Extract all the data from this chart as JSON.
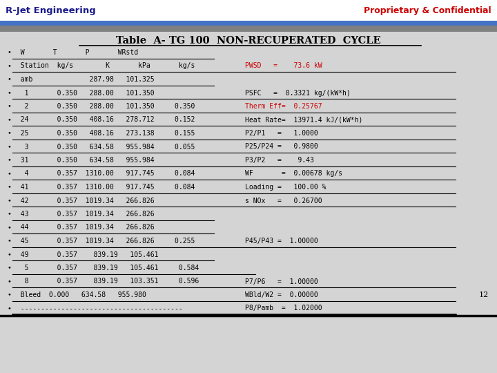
{
  "title": "Table  A- TG 100  NON-RECUPERATED  CYCLE",
  "header_left": "R-Jet Engineering",
  "header_right": "Proprietary & Confidential",
  "bg_color": "#d4d4d4",
  "blue_bar_color": "#4472c4",
  "gray_bar_color": "#808080",
  "header_bg": "#ffffff",
  "rows": [
    {
      "left": "  W       T       P       WRstd",
      "right": "",
      "ul_short": true
    },
    {
      "left": "  Station  kg/s        K       kPa       kg/s",
      "right": "PWSD   =    73.6 kW",
      "right_color": "#cc0000",
      "ul_long": true
    },
    {
      "left": "  amb              287.98   101.325",
      "right": "",
      "ul_short": true
    },
    {
      "left": "   1       0.350   288.00   101.350",
      "right": "PSFC   =  0.3321 kg/(kW*h)",
      "ul_long": true
    },
    {
      "left": "   2       0.350   288.00   101.350     0.350",
      "right": "Therm Eff=  0.25767",
      "right_color": "#cc0000",
      "ul_long": true
    },
    {
      "left": "  24       0.350   408.16   278.712     0.152",
      "right": "Heat Rate=  13971.4 kJ/(kW*h)",
      "ul_long": true
    },
    {
      "left": "  25       0.350   408.16   273.138     0.155",
      "right": "P2/P1   =   1.0000",
      "ul_long": true
    },
    {
      "left": "   3       0.350   634.58   955.984     0.055",
      "right": "P25/P24 =   0.9800",
      "ul_long": true
    },
    {
      "left": "  31       0.350   634.58   955.984",
      "right": "P3/P2   =    9.43",
      "ul_long": true
    },
    {
      "left": "   4       0.357  1310.00   917.745     0.084",
      "right": "WF       =  0.00678 kg/s",
      "ul_long": true
    },
    {
      "left": "  41       0.357  1310.00   917.745     0.084",
      "right": "Loading =   100.00 %",
      "ul_long": true
    },
    {
      "left": "  42       0.357  1019.34   266.826",
      "right": "s NOx   =   0.26700",
      "ul_long": true
    },
    {
      "left": "  43       0.357  1019.34   266.826",
      "right": "",
      "ul_short": true
    },
    {
      "left": "  44       0.357  1019.34   266.826",
      "right": "",
      "ul_short": true
    },
    {
      "left": "  45       0.357  1019.34   266.826     0.255",
      "right": "P45/P43 =  1.00000",
      "ul_long": true
    },
    {
      "left": "  49       0.357    839.19   105.461",
      "right": "",
      "ul_short": true
    },
    {
      "left": "   5       0.357    839.19   105.461     0.584",
      "right": "",
      "ul_med": true
    },
    {
      "left": "   8       0.357    839.19   103.351     0.596",
      "right": "P7/P6   =  1.00000",
      "ul_long": true
    },
    {
      "left": "  Bleed  0.000   634.58   955.980",
      "right": "WBld/W2 =  0.00000",
      "ul_long": true,
      "page_num": "12"
    },
    {
      "left": "  ----------------------------------------",
      "right": "P8/Pamb  =  1.02000",
      "ul_long": true,
      "last": true
    }
  ]
}
